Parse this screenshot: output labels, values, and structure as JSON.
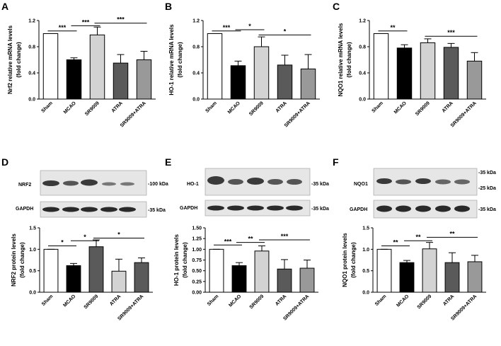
{
  "chart_data": [
    {
      "id": "A",
      "type": "bar",
      "letter": "A",
      "ylabel": [
        "Nrf2 relative mRNA levels",
        "(fold change)"
      ],
      "categories": [
        "Sham",
        "MCAO",
        "SR9009",
        "ATRA",
        "SR9009+ATRA"
      ],
      "values": [
        1.0,
        0.6,
        0.98,
        0.55,
        0.6
      ],
      "errors": [
        0.0,
        0.03,
        0.12,
        0.13,
        0.13
      ],
      "colors": [
        "#ffffff",
        "#000000",
        "#d3d3d3",
        "#5a5a5a",
        "#999999"
      ],
      "ylim": [
        0,
        1.2
      ],
      "yticks": [
        "0.0",
        "0.4",
        "0.8",
        "1.2"
      ],
      "ytick_values": [
        0,
        0.4,
        0.8,
        1.2
      ],
      "significance": [
        {
          "from": 0,
          "to": 1,
          "label": "***",
          "y": 1.04
        },
        {
          "from": 1,
          "to": 2,
          "label": "***",
          "y": 1.12
        },
        {
          "from": 2,
          "to": 4,
          "label": "***",
          "y": 1.16
        }
      ]
    },
    {
      "id": "B",
      "type": "bar",
      "letter": "B",
      "ylabel": [
        "HO-1 relative mRNA levels",
        "(fold change)"
      ],
      "categories": [
        "Sham",
        "MCAO",
        "SR9009",
        "ATRA",
        "SR9009+ATRA"
      ],
      "values": [
        1.0,
        0.51,
        0.8,
        0.52,
        0.46
      ],
      "errors": [
        0.0,
        0.07,
        0.15,
        0.15,
        0.22
      ],
      "colors": [
        "#ffffff",
        "#000000",
        "#d3d3d3",
        "#5a5a5a",
        "#999999"
      ],
      "ylim": [
        0,
        1.2
      ],
      "yticks": [
        "0.0",
        "0.4",
        "0.8",
        "1.2"
      ],
      "ytick_values": [
        0,
        0.4,
        0.8,
        1.2
      ],
      "significance": [
        {
          "from": 0,
          "to": 1,
          "label": "***",
          "y": 1.04
        },
        {
          "from": 1,
          "to": 2,
          "label": "*",
          "y": 1.06
        },
        {
          "from": 2,
          "to": 4,
          "label": "*",
          "y": 0.98
        }
      ]
    },
    {
      "id": "C",
      "type": "bar",
      "letter": "C",
      "ylabel": [
        "NQO1 relative mRNA levels",
        "(fold change)"
      ],
      "categories": [
        "Sham",
        "MCAO",
        "SR9009",
        "ATRA",
        "SR9009+ATRA"
      ],
      "values": [
        1.0,
        0.78,
        0.86,
        0.79,
        0.58
      ],
      "errors": [
        0.0,
        0.05,
        0.06,
        0.06,
        0.13
      ],
      "colors": [
        "#ffffff",
        "#000000",
        "#d3d3d3",
        "#5a5a5a",
        "#999999"
      ],
      "ylim": [
        0,
        1.2
      ],
      "yticks": [
        "0.0",
        "0.4",
        "0.8",
        "1.2"
      ],
      "ytick_values": [
        0,
        0.4,
        0.8,
        1.2
      ],
      "significance": [
        {
          "from": 0,
          "to": 1,
          "label": "**",
          "y": 1.04
        },
        {
          "from": 2,
          "to": 4,
          "label": "***",
          "y": 0.96
        }
      ]
    },
    {
      "id": "D",
      "type": "bar",
      "letter": "D",
      "ylabel": [
        "NRF2 protein levels",
        "(fold change)"
      ],
      "categories": [
        "Sham",
        "MCAO",
        "SR9009",
        "ATRA",
        "SR9009+ATRA"
      ],
      "values": [
        1.0,
        0.62,
        1.06,
        0.49,
        0.69
      ],
      "errors": [
        0.0,
        0.05,
        0.16,
        0.28,
        0.11
      ],
      "colors": [
        "#ffffff",
        "#000000",
        "#5a5a5a",
        "#d3d3d3",
        "#5a5a5a"
      ],
      "ylim": [
        0,
        1.5
      ],
      "yticks": [
        "0.0",
        "0.5",
        "1.0",
        "1.5"
      ],
      "ytick_values": [
        0,
        0.5,
        1.0,
        1.5
      ],
      "significance": [
        {
          "from": 0,
          "to": 1,
          "label": "*",
          "y": 1.08
        },
        {
          "from": 1,
          "to": 2,
          "label": "*",
          "y": 1.2
        },
        {
          "from": 2,
          "to": 4,
          "label": "*",
          "y": 1.26
        }
      ]
    },
    {
      "id": "E",
      "type": "bar",
      "letter": "E",
      "ylabel": [
        "HO-1 protein levels",
        "(fold change)"
      ],
      "categories": [
        "Sham",
        "MCAO",
        "SR9009",
        "ATRA",
        "SR9009+ATRA"
      ],
      "values": [
        1.0,
        0.62,
        0.96,
        0.54,
        0.56
      ],
      "errors": [
        0.0,
        0.07,
        0.12,
        0.22,
        0.19
      ],
      "colors": [
        "#ffffff",
        "#000000",
        "#d3d3d3",
        "#5a5a5a",
        "#999999"
      ],
      "ylim": [
        0,
        1.5
      ],
      "yticks": [
        "0.00",
        "0.25",
        "0.50",
        "0.75",
        "1.00",
        "1.25",
        "1.50"
      ],
      "ytick_values": [
        0,
        0.25,
        0.5,
        0.75,
        1.0,
        1.25,
        1.5
      ],
      "significance": [
        {
          "from": 0,
          "to": 1,
          "label": "***",
          "y": 1.1
        },
        {
          "from": 1,
          "to": 2,
          "label": "**",
          "y": 1.16
        },
        {
          "from": 2,
          "to": 4,
          "label": "***",
          "y": 1.22
        }
      ]
    },
    {
      "id": "F",
      "type": "bar",
      "letter": "F",
      "ylabel": [
        "NQO1 protein levels",
        "(fold change)"
      ],
      "categories": [
        "Sham",
        "MCAO",
        "SR9009",
        "ATRA",
        "SR9009+ATRA"
      ],
      "values": [
        1.0,
        0.69,
        1.01,
        0.69,
        0.71
      ],
      "errors": [
        0.0,
        0.05,
        0.15,
        0.23,
        0.15
      ],
      "colors": [
        "#ffffff",
        "#000000",
        "#d3d3d3",
        "#5a5a5a",
        "#999999"
      ],
      "ylim": [
        0,
        1.5
      ],
      "yticks": [
        "0.0",
        "0.5",
        "1.0",
        "1.5"
      ],
      "ytick_values": [
        0,
        0.5,
        1.0,
        1.5
      ],
      "significance": [
        {
          "from": 0,
          "to": 1,
          "label": "**",
          "y": 1.08
        },
        {
          "from": 1,
          "to": 2,
          "label": "**",
          "y": 1.2
        },
        {
          "from": 2,
          "to": 4,
          "label": "**",
          "y": 1.28
        }
      ]
    }
  ],
  "blots": [
    {
      "id": "D",
      "rows": [
        {
          "protein": "NRF2",
          "marker": "-100 kDa"
        },
        {
          "protein": "GAPDH",
          "marker": "-35 kDa"
        }
      ]
    },
    {
      "id": "E",
      "rows": [
        {
          "protein": "HO-1",
          "marker": "-35 kDa"
        },
        {
          "protein": "GAPDH",
          "marker": "-35 kDa"
        }
      ]
    },
    {
      "id": "F",
      "rows": [
        {
          "protein": "NQO1",
          "marker": "-35 kDa",
          "marker2": "-25 kDa"
        },
        {
          "protein": "GAPDH",
          "marker": "-35 kDa"
        }
      ]
    }
  ]
}
